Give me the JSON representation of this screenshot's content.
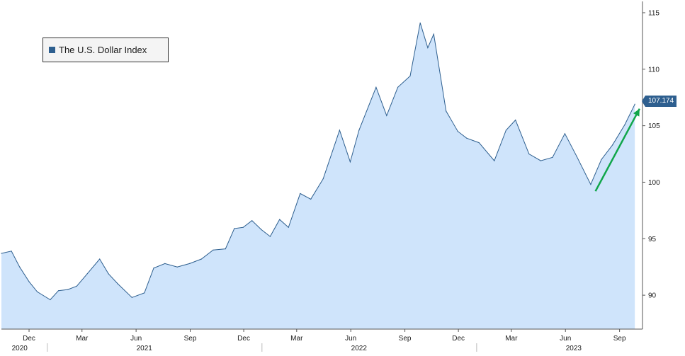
{
  "chart_data": {
    "type": "area",
    "legend": {
      "label": "The U.S. Dollar Index",
      "placement": "top-left"
    },
    "last_value_label": "107.174",
    "series": [
      {
        "name": "The U.S. Dollar Index",
        "x": [
          "2020-10-15",
          "2020-11-01",
          "2020-11-15",
          "2020-12-01",
          "2020-12-15",
          "2021-01-06",
          "2021-01-20",
          "2021-02-05",
          "2021-02-20",
          "2021-03-10",
          "2021-03-31",
          "2021-04-15",
          "2021-05-01",
          "2021-05-25",
          "2021-06-15",
          "2021-07-01",
          "2021-07-20",
          "2021-08-10",
          "2021-08-31",
          "2021-09-20",
          "2021-10-10",
          "2021-10-31",
          "2021-11-15",
          "2021-11-30",
          "2021-12-15",
          "2021-12-31",
          "2022-01-15",
          "2022-01-31",
          "2022-02-15",
          "2022-03-07",
          "2022-03-25",
          "2022-04-15",
          "2022-05-13",
          "2022-05-31",
          "2022-06-15",
          "2022-07-14",
          "2022-08-01",
          "2022-08-20",
          "2022-09-10",
          "2022-09-27",
          "2022-10-10",
          "2022-10-20",
          "2022-11-10",
          "2022-11-30",
          "2022-12-15",
          "2023-01-05",
          "2023-01-31",
          "2023-02-20",
          "2023-03-08",
          "2023-03-31",
          "2023-04-20",
          "2023-05-10",
          "2023-05-31",
          "2023-06-20",
          "2023-07-14",
          "2023-08-01",
          "2023-08-20",
          "2023-09-10",
          "2023-09-27"
        ],
        "values": [
          93.7,
          93.9,
          92.5,
          91.2,
          90.3,
          89.6,
          90.4,
          90.5,
          90.8,
          91.9,
          93.2,
          91.9,
          91.0,
          89.8,
          90.2,
          92.4,
          92.8,
          92.5,
          92.8,
          93.2,
          94.0,
          94.1,
          95.9,
          96.0,
          96.6,
          95.8,
          95.2,
          96.7,
          96.0,
          99.0,
          98.5,
          100.3,
          104.6,
          101.8,
          104.6,
          108.4,
          105.9,
          108.4,
          109.4,
          114.1,
          111.9,
          113.1,
          106.3,
          104.5,
          103.9,
          103.5,
          101.9,
          104.6,
          105.5,
          102.5,
          101.9,
          102.2,
          104.3,
          102.3,
          99.8,
          102.0,
          103.3,
          105.1,
          106.9
        ]
      }
    ],
    "x_ticks": [
      "Dec",
      "Mar",
      "Jun",
      "Sep",
      "Dec",
      "Mar",
      "Jun",
      "Sep",
      "Dec",
      "Mar",
      "Jun",
      "Sep"
    ],
    "x_tick_dates": [
      "2020-12-01",
      "2021-03-01",
      "2021-06-01",
      "2021-09-01",
      "2021-12-01",
      "2022-03-01",
      "2022-06-01",
      "2022-09-01",
      "2022-12-01",
      "2023-03-01",
      "2023-06-01",
      "2023-09-01"
    ],
    "year_labels": [
      "2020",
      "2021",
      "2022",
      "2023"
    ],
    "year_label_dates": [
      "2020-11-15",
      "2021-06-15",
      "2022-06-15",
      "2023-06-15"
    ],
    "y_ticks": [
      90,
      95,
      100,
      105,
      110,
      115
    ],
    "ylim": [
      87,
      116
    ],
    "xlim": [
      "2020-10-15",
      "2023-10-10"
    ],
    "grid": false,
    "trend_arrow": {
      "start": [
        "2023-07-22",
        99.2
      ],
      "end": [
        "2023-10-05",
        106.5
      ],
      "color": "#10a64a"
    },
    "colors": {
      "line": "#2e5f8f",
      "fill": "#cfe4fb",
      "badge": "#2e5f8f"
    }
  }
}
